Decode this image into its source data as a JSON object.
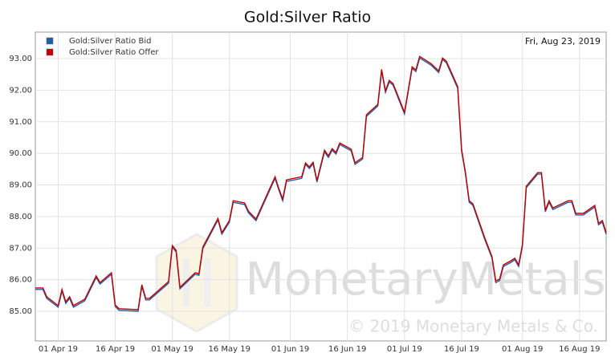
{
  "chart_data": {
    "type": "line",
    "title": "Gold:Silver Ratio",
    "date_label": "Fri, Aug 23, 2019",
    "watermark": "MonetaryMetals",
    "copyright": "© 2019 Monetary Metals & Co.",
    "x": [
      "2019-03-26",
      "2019-03-28",
      "2019-03-29",
      "2019-04-01",
      "2019-04-02",
      "2019-04-03",
      "2019-04-04",
      "2019-04-05",
      "2019-04-08",
      "2019-04-11",
      "2019-04-12",
      "2019-04-15",
      "2019-04-16",
      "2019-04-17",
      "2019-04-22",
      "2019-04-23",
      "2019-04-24",
      "2019-04-25",
      "2019-04-30",
      "2019-05-01",
      "2019-05-02",
      "2019-05-03",
      "2019-05-07",
      "2019-05-08",
      "2019-05-09",
      "2019-05-13",
      "2019-05-14",
      "2019-05-16",
      "2019-05-17",
      "2019-05-20",
      "2019-05-21",
      "2019-05-23",
      "2019-05-28",
      "2019-05-29",
      "2019-05-30",
      "2019-05-31",
      "2019-06-04",
      "2019-06-05",
      "2019-06-06",
      "2019-06-07",
      "2019-06-08",
      "2019-06-10",
      "2019-06-11",
      "2019-06-12",
      "2019-06-13",
      "2019-06-14",
      "2019-06-17",
      "2019-06-18",
      "2019-06-20",
      "2019-06-21",
      "2019-06-24",
      "2019-06-25",
      "2019-06-26",
      "2019-06-27",
      "2019-06-28",
      "2019-07-01",
      "2019-07-03",
      "2019-07-04",
      "2019-07-05",
      "2019-07-08",
      "2019-07-10",
      "2019-07-11",
      "2019-07-12",
      "2019-07-15",
      "2019-07-16",
      "2019-07-17",
      "2019-07-18",
      "2019-07-19",
      "2019-07-22",
      "2019-07-24",
      "2019-07-25",
      "2019-07-26",
      "2019-07-27",
      "2019-07-29",
      "2019-07-30",
      "2019-07-31",
      "2019-08-01",
      "2019-08-02",
      "2019-08-05",
      "2019-08-06",
      "2019-08-07",
      "2019-08-08",
      "2019-08-09",
      "2019-08-13",
      "2019-08-14",
      "2019-08-15",
      "2019-08-17",
      "2019-08-20",
      "2019-08-21",
      "2019-08-22",
      "2019-08-23"
    ],
    "series": [
      {
        "name": "Gold:Silver Ratio Bid",
        "color": "#1f5fa8",
        "values": [
          85.69,
          85.69,
          85.41,
          85.13,
          85.64,
          85.25,
          85.41,
          85.13,
          85.33,
          86.07,
          85.86,
          86.17,
          85.15,
          85.03,
          85.0,
          85.79,
          85.36,
          85.36,
          85.89,
          87.03,
          86.88,
          85.71,
          86.17,
          86.14,
          86.98,
          87.89,
          87.44,
          87.82,
          88.45,
          88.38,
          88.12,
          87.87,
          89.21,
          88.83,
          88.5,
          89.11,
          89.21,
          89.65,
          89.52,
          89.67,
          89.09,
          90.05,
          89.87,
          90.1,
          89.98,
          90.28,
          90.08,
          89.65,
          89.82,
          91.17,
          91.5,
          92.61,
          91.93,
          92.26,
          92.16,
          91.25,
          92.69,
          92.59,
          93.02,
          92.79,
          92.56,
          92.97,
          92.87,
          92.06,
          90.08,
          89.37,
          88.45,
          88.35,
          87.31,
          86.68,
          85.91,
          85.97,
          86.42,
          86.55,
          86.63,
          86.42,
          87.06,
          88.91,
          89.34,
          89.34,
          88.15,
          88.45,
          88.22,
          88.45,
          88.45,
          88.05,
          88.05,
          88.3,
          87.74,
          87.82,
          87.44
        ]
      },
      {
        "name": "Gold:Silver Ratio Offer",
        "color": "#c00000",
        "values": [
          85.74,
          85.74,
          85.46,
          85.18,
          85.69,
          85.3,
          85.46,
          85.18,
          85.38,
          86.12,
          85.91,
          86.22,
          85.2,
          85.08,
          85.05,
          85.84,
          85.41,
          85.41,
          85.94,
          87.08,
          86.93,
          85.76,
          86.22,
          86.19,
          87.03,
          87.94,
          87.49,
          87.87,
          88.5,
          88.43,
          88.17,
          87.92,
          89.26,
          88.88,
          88.55,
          89.16,
          89.26,
          89.7,
          89.57,
          89.72,
          89.14,
          90.1,
          89.92,
          90.15,
          90.03,
          90.33,
          90.13,
          89.7,
          89.87,
          91.22,
          91.55,
          92.66,
          91.98,
          92.31,
          92.21,
          91.3,
          92.74,
          92.64,
          93.07,
          92.84,
          92.61,
          93.02,
          92.92,
          92.11,
          90.13,
          89.42,
          88.5,
          88.4,
          87.36,
          86.73,
          85.96,
          86.02,
          86.47,
          86.6,
          86.68,
          86.47,
          87.11,
          88.96,
          89.39,
          89.39,
          88.2,
          88.5,
          88.27,
          88.5,
          88.5,
          88.1,
          88.1,
          88.35,
          87.79,
          87.87,
          87.49
        ]
      }
    ],
    "xlim": [
      "2019-03-26",
      "2019-08-23"
    ],
    "xticks": [
      {
        "value": "2019-04-01",
        "label": "01 Apr 19"
      },
      {
        "value": "2019-04-16",
        "label": "16 Apr 19"
      },
      {
        "value": "2019-05-01",
        "label": "01 May 19"
      },
      {
        "value": "2019-05-16",
        "label": "16 May 19"
      },
      {
        "value": "2019-06-01",
        "label": "01 Jun 19"
      },
      {
        "value": "2019-06-16",
        "label": "16 Jun 19"
      },
      {
        "value": "2019-07-01",
        "label": "01 Jul 19"
      },
      {
        "value": "2019-07-16",
        "label": "16 Jul 19"
      },
      {
        "value": "2019-08-01",
        "label": "01 Aug 19"
      },
      {
        "value": "2019-08-16",
        "label": "16 Aug 19"
      }
    ],
    "ylim": [
      84.06,
      93.84
    ],
    "yticks": [
      {
        "value": 85,
        "label": "85.00"
      },
      {
        "value": 86,
        "label": "86.00"
      },
      {
        "value": 87,
        "label": "87.00"
      },
      {
        "value": 88,
        "label": "88.00"
      },
      {
        "value": 89,
        "label": "89.00"
      },
      {
        "value": 90,
        "label": "90.00"
      },
      {
        "value": 91,
        "label": "91.00"
      },
      {
        "value": 92,
        "label": "92.00"
      },
      {
        "value": 93,
        "label": "93.00"
      }
    ],
    "grid": true,
    "legend": "top-left"
  }
}
